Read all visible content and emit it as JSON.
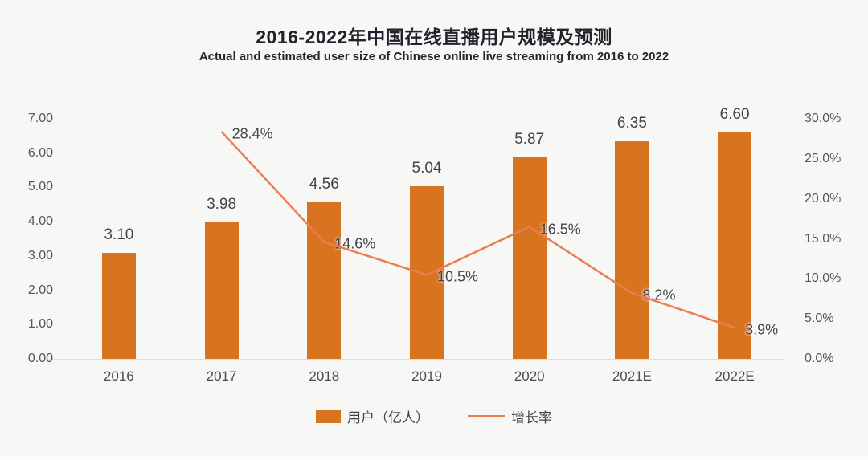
{
  "chart": {
    "title": "2016-2022年中国在线直播用户规模及预测",
    "subtitle": "Actual and estimated user size of Chinese online live streaming from 2016 to 2022",
    "legend": {
      "bar": "用户（亿人）",
      "line": "增长率"
    }
  },
  "colors": {
    "bar": "#D8731F",
    "line": "#EC7D52",
    "background": "#F7F7F5",
    "label_text": "#3F444C",
    "axis_text": "#54565C",
    "title_text": "#20232B"
  },
  "chart_data": {
    "type": "bar",
    "subtype": "bar+line combo, dual axis",
    "title": "2016-2022年中国在线直播用户规模及预测",
    "subtitle": "Actual and estimated user size of Chinese online live streaming from 2016 to 2022",
    "categories": [
      "2016",
      "2017",
      "2018",
      "2019",
      "2020",
      "2021E",
      "2022E"
    ],
    "series": [
      {
        "name": "用户（亿人）",
        "type": "bar",
        "axis": "left",
        "color": "#D8731F",
        "values": [
          3.1,
          3.98,
          4.56,
          5.04,
          5.87,
          6.35,
          6.6
        ],
        "labels": [
          "3.10",
          "3.98",
          "4.56",
          "5.04",
          "5.87",
          "6.35",
          "6.60"
        ]
      },
      {
        "name": "增长率",
        "type": "line",
        "axis": "right",
        "color": "#EC7D52",
        "values": [
          null,
          28.4,
          14.6,
          10.5,
          16.5,
          8.2,
          3.9
        ],
        "labels": [
          null,
          "28.4%",
          "14.6%",
          "10.5%",
          "16.5%",
          "8.2%",
          "3.9%"
        ]
      }
    ],
    "left_axis": {
      "min": 0,
      "max": 7,
      "ticks": [
        "7.00",
        "6.00",
        "5.00",
        "4.00",
        "3.00",
        "2.00",
        "1.00",
        "0.00"
      ]
    },
    "right_axis": {
      "min": 0,
      "max": 30,
      "ticks": [
        "30.0%",
        "25.0%",
        "20.0%",
        "15.0%",
        "10.0%",
        "5.0%",
        "0.0%"
      ]
    },
    "grid": false,
    "legend_position": "bottom"
  }
}
